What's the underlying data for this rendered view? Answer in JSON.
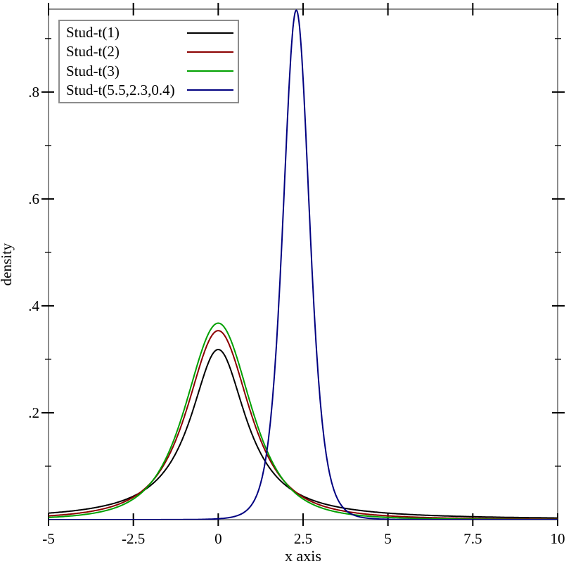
{
  "figure": {
    "background": "#ffffff"
  },
  "chart_data": {
    "type": "line",
    "title": "",
    "xlabel": "x axis",
    "ylabel": "density",
    "xlim": [
      -5,
      10
    ],
    "ylim": [
      0,
      0.955
    ],
    "grid": false,
    "frame_color": "#8c8c8c",
    "tick_color": "#000000",
    "legend_position": "top-left",
    "x_ticks": {
      "values": [
        -5,
        -2.5,
        0,
        2.5,
        5,
        7.5,
        10
      ],
      "labels": [
        "-5",
        "-2.5",
        "0",
        "2.5",
        "5",
        "7.5",
        "10"
      ]
    },
    "y_ticks": {
      "major_values": [
        0.2,
        0.4,
        0.6,
        0.8
      ],
      "major_labels": [
        ".2",
        ".4",
        ".6",
        ".8"
      ],
      "minor_values": [
        0.1,
        0.3,
        0.5,
        0.7,
        0.9
      ]
    },
    "series": [
      {
        "name": "Stud-t(1)",
        "color": "#000000",
        "distribution": "student-t",
        "df": 1,
        "location": 0,
        "scale": 1,
        "peak_x": 0,
        "peak_density": 0.3183
      },
      {
        "name": "Stud-t(2)",
        "color": "#8b0000",
        "distribution": "student-t",
        "df": 2,
        "location": 0,
        "scale": 1,
        "peak_x": 0,
        "peak_density": 0.3536
      },
      {
        "name": "Stud-t(3)",
        "color": "#00a000",
        "distribution": "student-t",
        "df": 3,
        "location": 0,
        "scale": 1,
        "peak_x": 0,
        "peak_density": 0.3676
      },
      {
        "name": "Stud-t(5.5,2.3,0.4)",
        "color": "#000080",
        "distribution": "student-t",
        "df": 5.5,
        "location": 2.3,
        "scale": 0.4,
        "peak_x": 2.3,
        "peak_density": 0.9533
      }
    ]
  }
}
